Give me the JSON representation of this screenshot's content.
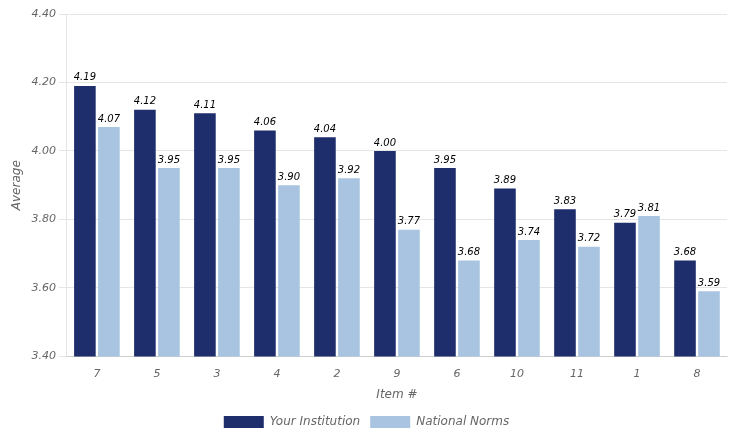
{
  "chart_data": {
    "type": "bar",
    "categories": [
      "7",
      "5",
      "3",
      "4",
      "2",
      "9",
      "6",
      "10",
      "11",
      "1",
      "8"
    ],
    "series": [
      {
        "name": "Your Institution",
        "color": "#1e2d6b",
        "values": [
          4.19,
          4.12,
          4.11,
          4.06,
          4.04,
          4.0,
          3.95,
          3.89,
          3.83,
          3.79,
          3.68
        ],
        "value_labels": [
          "4.19",
          "4.12",
          "4.11",
          "4.06",
          "4.04",
          "4.00",
          "3.95",
          "3.89",
          "3.83",
          "3.79",
          "3.68"
        ]
      },
      {
        "name": "National Norms",
        "color": "#a8c4e0",
        "values": [
          4.07,
          3.95,
          3.95,
          3.9,
          3.92,
          3.77,
          3.68,
          3.74,
          3.72,
          3.81,
          3.59
        ],
        "value_labels": [
          "4.07",
          "3.95",
          "3.95",
          "3.90",
          "3.92",
          "3.77",
          "3.68",
          "3.74",
          "3.72",
          "3.81",
          "3.59"
        ]
      }
    ],
    "xlabel": "Item #",
    "ylabel": "Average",
    "ylim": [
      3.4,
      4.4
    ],
    "yticks": [
      {
        "value": 3.4,
        "label": "3.40"
      },
      {
        "value": 3.6,
        "label": "3.60"
      },
      {
        "value": 3.8,
        "label": "3.80"
      },
      {
        "value": 4.0,
        "label": "4.00"
      },
      {
        "value": 4.2,
        "label": "4.20"
      },
      {
        "value": 4.4,
        "label": "4.40"
      }
    ],
    "grid": true,
    "legend": "bottom",
    "data_labels": true
  }
}
